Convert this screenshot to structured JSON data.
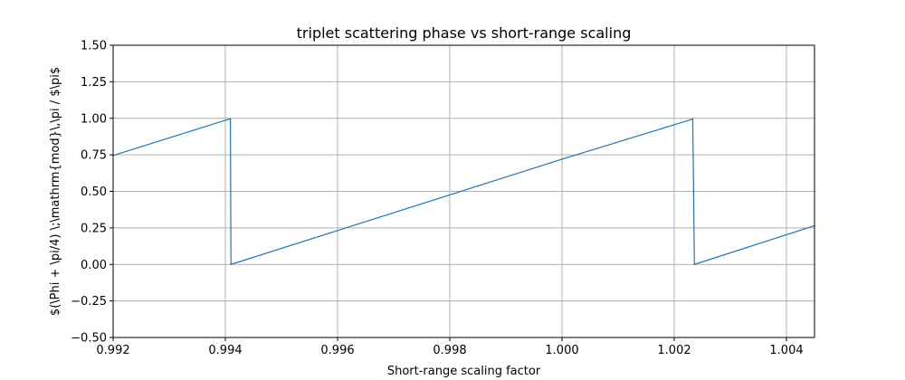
{
  "chart_data": {
    "type": "line",
    "title": "triplet scattering phase vs short-range scaling",
    "xlabel": "Short-range scaling factor",
    "ylabel": "$(\\Phi + \\pi/4) \\;\\mathrm{mod}\\,\\pi / $\\pi$",
    "xlim": [
      0.992,
      1.0045
    ],
    "ylim": [
      -0.5,
      1.5
    ],
    "xticks": [
      0.992,
      0.994,
      0.996,
      0.998,
      1.0,
      1.002,
      1.004
    ],
    "xtick_labels": [
      "0.992",
      "0.994",
      "0.996",
      "0.998",
      "1.000",
      "1.002",
      "1.004"
    ],
    "yticks": [
      -0.5,
      -0.25,
      0.0,
      0.25,
      0.5,
      0.75,
      1.0,
      1.25,
      1.5
    ],
    "ytick_labels": [
      "−0.50",
      "−0.25",
      "0.00",
      "0.25",
      "0.50",
      "0.75",
      "1.00",
      "1.25",
      "1.50"
    ],
    "grid": true,
    "series": [
      {
        "color": "#1f77b4",
        "x": [
          0.992,
          0.99407,
          0.99409,
          0.9941,
          1.0,
          1.00233,
          1.00236,
          1.0045
        ],
        "y": [
          0.745,
          0.995,
          0.995,
          0.0,
          0.72,
          0.995,
          0.0,
          0.265
        ]
      }
    ]
  }
}
